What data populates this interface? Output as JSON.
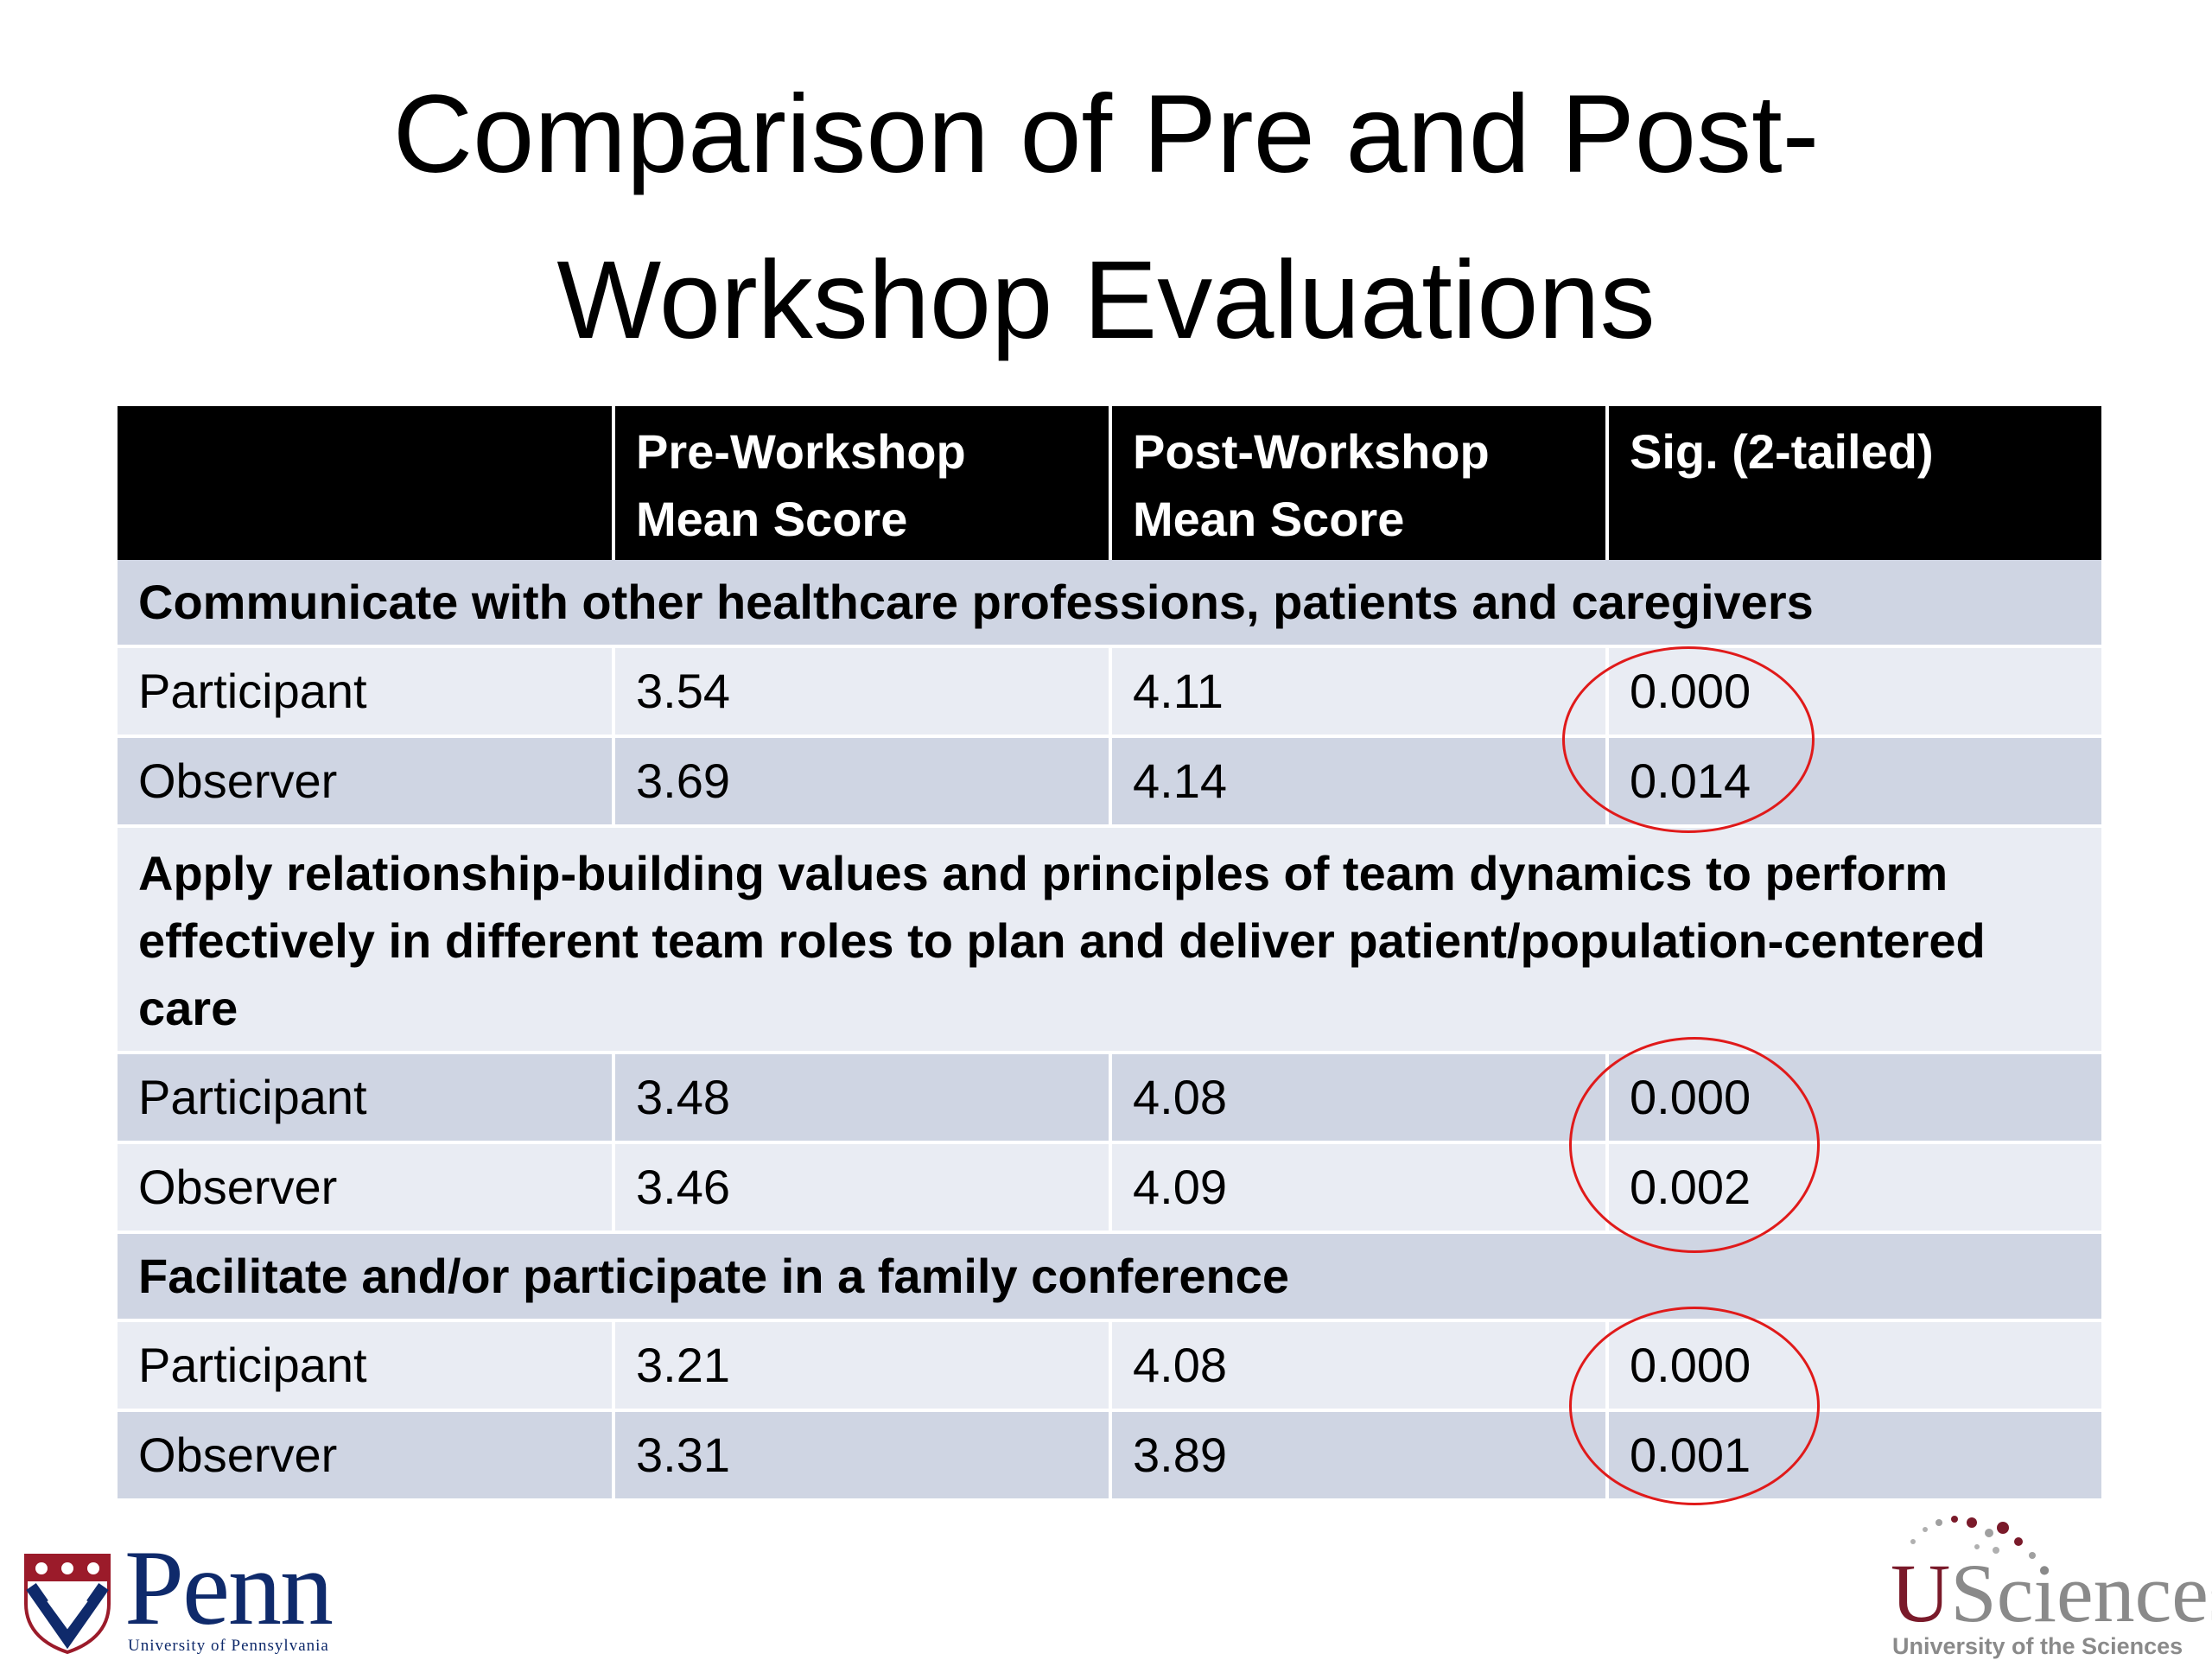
{
  "title": {
    "line1": "Comparison of Pre and Post-",
    "line2": "Workshop Evaluations"
  },
  "table": {
    "headers": {
      "col0": "",
      "col1_line1": "Pre-Workshop",
      "col1_line2": "Mean Score",
      "col2_line1": "Post-Workshop",
      "col2_line2": "Mean Score",
      "col3": "Sig. (2-tailed)"
    },
    "sections": [
      {
        "heading": "Communicate with other healthcare professions, patients and caregivers",
        "rows": [
          {
            "label": "Participant",
            "pre": "3.54",
            "post": "4.11",
            "sig": "0.000"
          },
          {
            "label": "Observer",
            "pre": "3.69",
            "post": "4.14",
            "sig": "0.014"
          }
        ]
      },
      {
        "heading": "Apply relationship-building values and principles of team dynamics to perform effectively in different team roles to plan and deliver patient/population-centered care",
        "rows": [
          {
            "label": "Participant",
            "pre": "3.48",
            "post": "4.08",
            "sig": "0.000"
          },
          {
            "label": "Observer",
            "pre": "3.46",
            "post": "4.09",
            "sig": "0.002"
          }
        ]
      },
      {
        "heading": "Facilitate and/or participate in a family conference",
        "rows": [
          {
            "label": "Participant",
            "pre": "3.21",
            "post": "4.08",
            "sig": "0.000"
          },
          {
            "label": "Observer",
            "pre": "3.31",
            "post": "3.89",
            "sig": "0.001"
          }
        ]
      }
    ]
  },
  "logos": {
    "penn": {
      "word": "Penn",
      "subtitle": "University of Pennsylvania",
      "color": "#0f2a6b"
    },
    "usciences": {
      "word_u": "U",
      "word_rest": "Sciences",
      "subtitle": "University of the Sciences",
      "accent": "#7a1a2a"
    }
  },
  "colors": {
    "header_bg": "#000000",
    "row_dark": "#cfd5e3",
    "row_light": "#e9ecf3",
    "highlight_ring": "#e01a1a"
  }
}
